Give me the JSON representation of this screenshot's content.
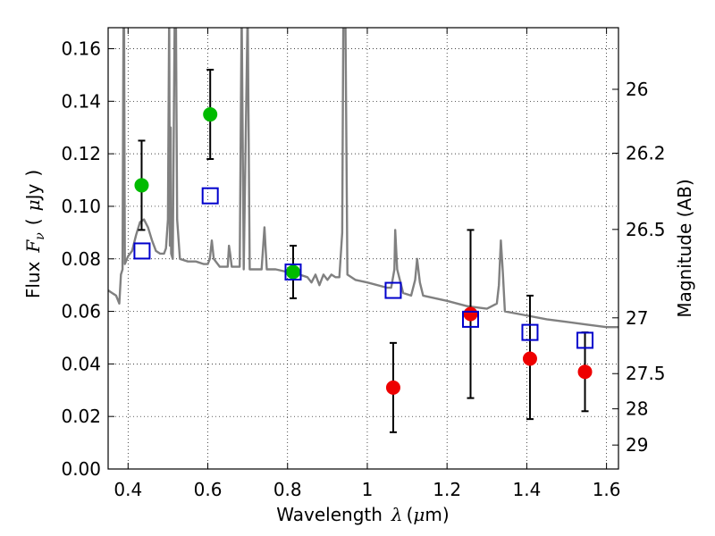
{
  "chart_data": {
    "type": "scatter",
    "title": "",
    "xlabel": {
      "prefix": "Wavelength",
      "symbol": "λ",
      "unit_open": "(",
      "unit_mu": "μ",
      "unit_rest": "m)"
    },
    "ylabel": {
      "prefix": "Flux",
      "symbol": "F",
      "sub": "ν",
      "unit_open": "(",
      "unit_mu": "μ",
      "unit_rest": "Jy",
      "unit_close": ")"
    },
    "y2label": "Magnitude (AB)",
    "xlim": [
      0.35,
      1.63
    ],
    "ylim": [
      0.0,
      0.168
    ],
    "grid": true,
    "x_ticks": [
      {
        "v": 0.4,
        "l": "0.4"
      },
      {
        "v": 0.6,
        "l": "0.6"
      },
      {
        "v": 0.8,
        "l": "0.8"
      },
      {
        "v": 1.0,
        "l": "1"
      },
      {
        "v": 1.2,
        "l": "1.2"
      },
      {
        "v": 1.4,
        "l": "1.4"
      },
      {
        "v": 1.6,
        "l": "1.6"
      }
    ],
    "y_ticks": [
      {
        "v": 0.0,
        "l": "0.00"
      },
      {
        "v": 0.02,
        "l": "0.02"
      },
      {
        "v": 0.04,
        "l": "0.04"
      },
      {
        "v": 0.06,
        "l": "0.06"
      },
      {
        "v": 0.08,
        "l": "0.08"
      },
      {
        "v": 0.1,
        "l": "0.10"
      },
      {
        "v": 0.12,
        "l": "0.12"
      },
      {
        "v": 0.14,
        "l": "0.14"
      },
      {
        "v": 0.16,
        "l": "0.16"
      }
    ],
    "y2_ticks": [
      {
        "v": 26.0,
        "l": "26"
      },
      {
        "v": 26.2,
        "l": "26.2"
      },
      {
        "v": 26.5,
        "l": "26.5"
      },
      {
        "v": 27.0,
        "l": "27"
      },
      {
        "v": 27.5,
        "l": "27.5"
      },
      {
        "v": 28.0,
        "l": "28"
      },
      {
        "v": 29.0,
        "l": "29"
      }
    ],
    "colors": {
      "model": "#808080",
      "optical": "#00bb00",
      "infrared": "#ee0000",
      "model_bands": "#0000cc",
      "errorbar": "#000000",
      "grid": "#000000"
    },
    "series": [
      {
        "type": "line",
        "points": [
          [
            0.35,
            0.068
          ],
          [
            0.37,
            0.066
          ],
          [
            0.378,
            0.063
          ],
          [
            0.382,
            0.074
          ],
          [
            0.386,
            0.076
          ],
          [
            0.3885,
            0.175
          ],
          [
            0.39,
            0.175
          ],
          [
            0.392,
            0.078
          ],
          [
            0.4,
            0.081
          ],
          [
            0.41,
            0.083
          ],
          [
            0.42,
            0.089
          ],
          [
            0.43,
            0.094
          ],
          [
            0.44,
            0.095
          ],
          [
            0.45,
            0.092
          ],
          [
            0.46,
            0.087
          ],
          [
            0.47,
            0.083
          ],
          [
            0.48,
            0.082
          ],
          [
            0.49,
            0.082
          ],
          [
            0.495,
            0.084
          ],
          [
            0.5,
            0.095
          ],
          [
            0.503,
            0.175
          ],
          [
            0.505,
            0.085
          ],
          [
            0.507,
            0.13
          ],
          [
            0.508,
            0.082
          ],
          [
            0.512,
            0.08
          ],
          [
            0.517,
            0.175
          ],
          [
            0.52,
            0.175
          ],
          [
            0.523,
            0.095
          ],
          [
            0.53,
            0.08
          ],
          [
            0.55,
            0.079
          ],
          [
            0.57,
            0.079
          ],
          [
            0.59,
            0.078
          ],
          [
            0.6,
            0.078
          ],
          [
            0.605,
            0.08
          ],
          [
            0.61,
            0.087
          ],
          [
            0.615,
            0.08
          ],
          [
            0.63,
            0.077
          ],
          [
            0.65,
            0.077
          ],
          [
            0.653,
            0.085
          ],
          [
            0.656,
            0.082
          ],
          [
            0.66,
            0.077
          ],
          [
            0.68,
            0.077
          ],
          [
            0.685,
            0.175
          ],
          [
            0.69,
            0.076
          ],
          [
            0.7,
            0.175
          ],
          [
            0.705,
            0.076
          ],
          [
            0.72,
            0.076
          ],
          [
            0.735,
            0.076
          ],
          [
            0.742,
            0.092
          ],
          [
            0.748,
            0.076
          ],
          [
            0.77,
            0.076
          ],
          [
            0.8,
            0.075
          ],
          [
            0.83,
            0.074
          ],
          [
            0.85,
            0.073
          ],
          [
            0.86,
            0.071
          ],
          [
            0.87,
            0.074
          ],
          [
            0.88,
            0.07
          ],
          [
            0.89,
            0.074
          ],
          [
            0.9,
            0.072
          ],
          [
            0.91,
            0.074
          ],
          [
            0.92,
            0.073
          ],
          [
            0.93,
            0.073
          ],
          [
            0.937,
            0.09
          ],
          [
            0.94,
            0.175
          ],
          [
            0.945,
            0.175
          ],
          [
            0.95,
            0.074
          ],
          [
            0.97,
            0.072
          ],
          [
            1.0,
            0.071
          ],
          [
            1.05,
            0.069
          ],
          [
            1.06,
            0.069
          ],
          [
            1.068,
            0.076
          ],
          [
            1.07,
            0.091
          ],
          [
            1.075,
            0.076
          ],
          [
            1.09,
            0.067
          ],
          [
            1.11,
            0.066
          ],
          [
            1.12,
            0.072
          ],
          [
            1.125,
            0.08
          ],
          [
            1.132,
            0.071
          ],
          [
            1.14,
            0.066
          ],
          [
            1.2,
            0.064
          ],
          [
            1.25,
            0.062
          ],
          [
            1.3,
            0.061
          ],
          [
            1.325,
            0.063
          ],
          [
            1.33,
            0.07
          ],
          [
            1.335,
            0.087
          ],
          [
            1.34,
            0.075
          ],
          [
            1.345,
            0.06
          ],
          [
            1.38,
            0.059
          ],
          [
            1.45,
            0.057
          ],
          [
            1.5,
            0.056
          ],
          [
            1.55,
            0.055
          ],
          [
            1.6,
            0.054
          ],
          [
            1.63,
            0.054
          ]
        ]
      },
      {
        "type": "errorbar",
        "name": "",
        "points": [
          {
            "x": 0.434,
            "y": 0.108,
            "lo": 0.091,
            "hi": 0.125,
            "color": "optical"
          },
          {
            "x": 0.606,
            "y": 0.135,
            "lo": 0.118,
            "hi": 0.152,
            "color": "optical"
          },
          {
            "x": 0.814,
            "y": 0.075,
            "lo": 0.065,
            "hi": 0.085,
            "color": "optical"
          },
          {
            "x": 1.065,
            "y": 0.031,
            "lo": 0.014,
            "hi": 0.048,
            "color": "infrared"
          },
          {
            "x": 1.259,
            "y": 0.059,
            "lo": 0.027,
            "hi": 0.091,
            "color": "infrared"
          },
          {
            "x": 1.408,
            "y": 0.042,
            "lo": 0.019,
            "hi": 0.066,
            "color": "infrared"
          },
          {
            "x": 1.546,
            "y": 0.037,
            "lo": 0.022,
            "hi": 0.052,
            "color": "infrared"
          }
        ]
      },
      {
        "type": "square",
        "points": [
          [
            0.435,
            0.083
          ],
          [
            0.606,
            0.104
          ],
          [
            0.814,
            0.075
          ],
          [
            1.065,
            0.068
          ],
          [
            1.259,
            0.057
          ],
          [
            1.408,
            0.052
          ],
          [
            1.546,
            0.049
          ]
        ]
      }
    ]
  }
}
